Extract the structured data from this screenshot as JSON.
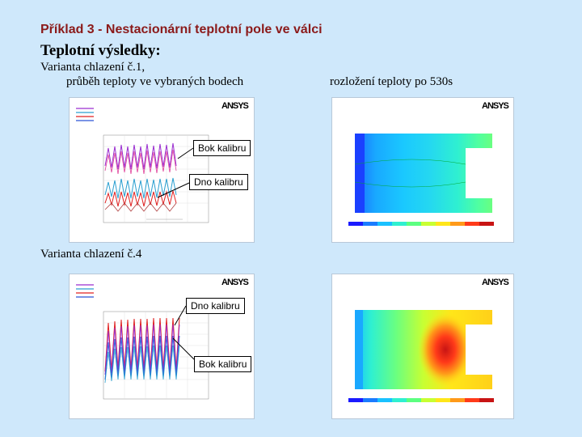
{
  "header": {
    "title": "Příklad 3 - Nestacionární teplotní pole ve válci"
  },
  "section": {
    "title": "Teplotní výsledky:"
  },
  "variant1": {
    "line1": "Varianta chlazení č.1,",
    "line2": "průběh teploty ve vybraných bodech"
  },
  "variant4": {
    "label": "Varianta chlazení č.4"
  },
  "right_caption": "rozložení teploty po 530s",
  "callouts": {
    "v1_bok": "Bok kalibru",
    "v1_dno": "Dno kalibru",
    "v4_dno": "Dno kalibru",
    "v4_bok": "Bok kalibru"
  },
  "logo": "ANSYS",
  "colors": {
    "background": "#cfe8fb",
    "title": "#8b1a1a",
    "series_bok": "#9b2fd0",
    "series_dno": "#2a9fd0",
    "series_third": "#e02020",
    "series_fourth": "#2b55d6"
  },
  "contour_colors": [
    "#1a1aff",
    "#1a7cff",
    "#19c1ff",
    "#2ff0d0",
    "#5cff80",
    "#c8ff32",
    "#ffe619",
    "#ff9a19",
    "#ff3a19",
    "#c81414"
  ]
}
